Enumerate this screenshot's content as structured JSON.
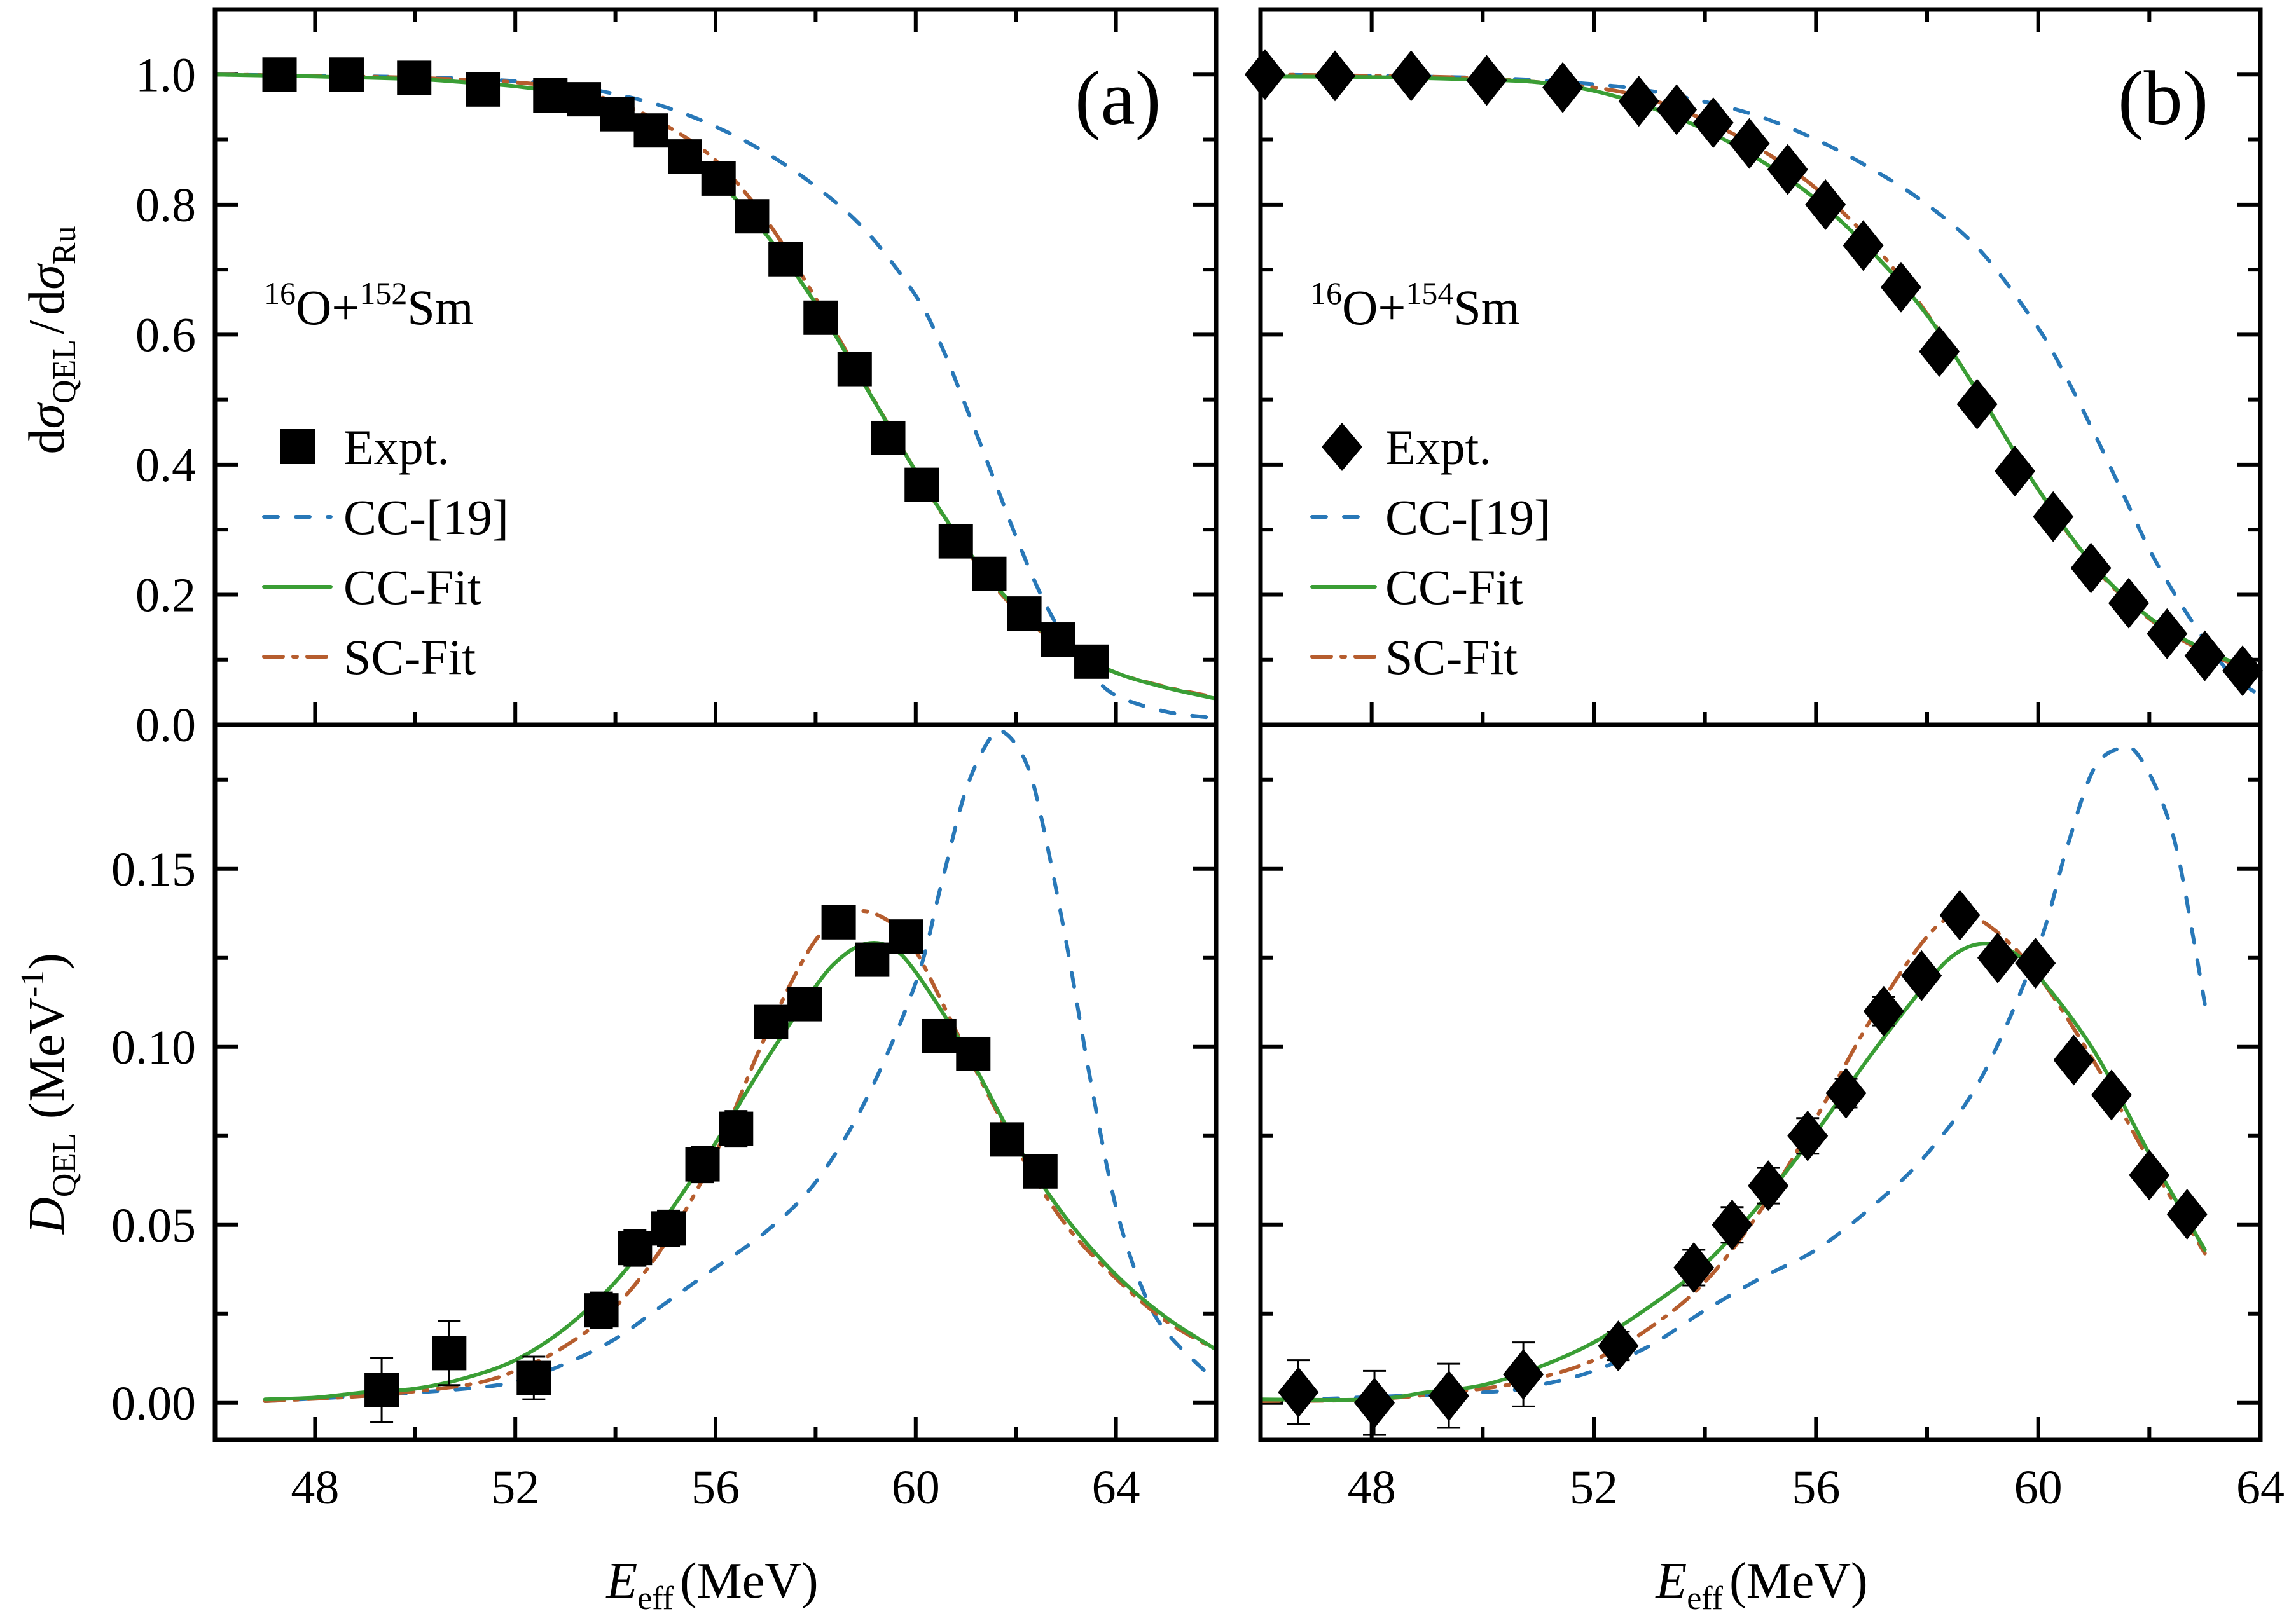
{
  "figure": {
    "panels": [
      {
        "id": "a",
        "label": "(a)",
        "system": {
          "mass_a": "16",
          "el_a": "O",
          "plus": "+",
          "mass_b": "152",
          "el_b": "Sm"
        },
        "marker": "square"
      },
      {
        "id": "b",
        "label": "(b)",
        "system": {
          "mass_a": "16",
          "el_a": "O",
          "plus": "+",
          "mass_b": "154",
          "el_b": "Sm"
        },
        "marker": "diamond"
      }
    ],
    "top_ylabel": {
      "d1": "d",
      "sigma1": "σ",
      "sub1": "QEL",
      "slash": "/",
      "d2": "d",
      "sigma2": "σ",
      "sub2": "Ru"
    },
    "bottom_ylabel": {
      "D": "D",
      "sub": "QEL",
      "unit_open": "(MeV",
      "unit_sup": "-1",
      "unit_close": ")"
    },
    "xlabel": {
      "E": "E",
      "sub": "eff",
      "unit": "(MeV)"
    },
    "legend": [
      {
        "key": "expt",
        "label": "Expt."
      },
      {
        "key": "cc19",
        "label": "CC-[19]"
      },
      {
        "key": "ccfit",
        "label": "CC-Fit"
      },
      {
        "key": "scfit",
        "label": "SC-Fit"
      }
    ],
    "colors": {
      "cc19": "#2878b8",
      "ccfit": "#3a9e35",
      "scfit": "#b65d2e",
      "expt": "#000000"
    }
  },
  "chart_data": [
    {
      "type": "scatter+line",
      "panel": "a-top",
      "title": "(a) 16O+152Sm",
      "xlabel": "E_eff (MeV)",
      "ylabel": "dσ_QEL/dσ_Ru",
      "xlim": [
        46,
        66
      ],
      "ylim": [
        0,
        1.1
      ],
      "xticks": [
        48,
        52,
        56,
        60,
        64
      ],
      "yticks": [
        0.0,
        0.2,
        0.4,
        0.6,
        0.8,
        1.0
      ],
      "ytick_labels": [
        "0.0",
        "0.2",
        "0.4",
        "0.6",
        "0.8",
        "1.0"
      ],
      "legend_position": "center-left",
      "series": [
        {
          "name": "Expt.",
          "kind": "points",
          "x": [
            47.29,
            48.63,
            49.98,
            51.35,
            52.7,
            53.37,
            54.04,
            54.71,
            55.39,
            56.06,
            56.73,
            57.4,
            58.1,
            58.78,
            59.45,
            60.12,
            60.8,
            61.47,
            62.17,
            62.84,
            63.51
          ],
          "y": [
            1.0,
            1.0,
            0.995,
            0.977,
            0.968,
            0.962,
            0.939,
            0.914,
            0.874,
            0.84,
            0.782,
            0.716,
            0.626,
            0.547,
            0.441,
            0.369,
            0.282,
            0.232,
            0.171,
            0.131,
            0.097
          ]
        },
        {
          "name": "CC-[19]",
          "kind": "line",
          "x": [
            46,
            50,
            52,
            53,
            54,
            55,
            56,
            57,
            58,
            59,
            60,
            60.5,
            61,
            61.5,
            62,
            62.5,
            63,
            63.5,
            64,
            65,
            66
          ],
          "y": [
            1.0,
            0.996,
            0.99,
            0.983,
            0.97,
            0.95,
            0.92,
            0.88,
            0.828,
            0.76,
            0.66,
            0.585,
            0.49,
            0.39,
            0.29,
            0.2,
            0.13,
            0.08,
            0.045,
            0.02,
            0.01
          ]
        },
        {
          "name": "CC-Fit",
          "kind": "line",
          "x": [
            46,
            48,
            50,
            51,
            52,
            53,
            54,
            55,
            56,
            57,
            58,
            59,
            60,
            61,
            62,
            63,
            64,
            65,
            66
          ],
          "y": [
            1.0,
            0.997,
            0.993,
            0.988,
            0.982,
            0.97,
            0.945,
            0.9,
            0.84,
            0.755,
            0.648,
            0.52,
            0.39,
            0.272,
            0.18,
            0.118,
            0.08,
            0.057,
            0.04
          ]
        },
        {
          "name": "SC-Fit",
          "kind": "line",
          "x": [
            46,
            48,
            50,
            52,
            53,
            54,
            55,
            56,
            57,
            58,
            59,
            60,
            61,
            62,
            63,
            64,
            65,
            66
          ],
          "y": [
            1.0,
            0.998,
            0.995,
            0.988,
            0.978,
            0.958,
            0.922,
            0.868,
            0.778,
            0.656,
            0.522,
            0.39,
            0.27,
            0.177,
            0.117,
            0.08,
            0.058,
            0.042
          ]
        }
      ]
    },
    {
      "type": "scatter+line",
      "panel": "a-bottom",
      "xlabel": "E_eff (MeV)",
      "ylabel": "D_QEL (MeV^-1)",
      "xlim": [
        46,
        66
      ],
      "ylim": [
        -0.0104,
        0.1905
      ],
      "xticks": [
        48,
        52,
        56,
        60,
        64
      ],
      "xtick_labels": [
        "48",
        "52",
        "56",
        "60",
        "64"
      ],
      "yticks": [
        0.0,
        0.05,
        0.1,
        0.15
      ],
      "ytick_labels": [
        "0.00",
        "0.05",
        "0.10",
        "0.15"
      ],
      "series": [
        {
          "name": "Expt.",
          "kind": "points",
          "x": [
            49.33,
            50.68,
            52.37,
            53.72,
            54.39,
            55.06,
            55.74,
            56.41,
            57.11,
            57.78,
            58.46,
            59.13,
            59.8,
            60.47,
            61.15,
            61.82,
            62.49
          ],
          "y": [
            0.0037,
            0.014,
            0.007,
            0.026,
            0.0435,
            0.049,
            0.067,
            0.077,
            0.107,
            0.112,
            0.135,
            0.1245,
            0.131,
            0.103,
            0.098,
            0.074,
            0.065
          ],
          "err": [
            0.009,
            0.009,
            0.006,
            0.005,
            0.005,
            0.005,
            0.005,
            0.005,
            0.004,
            0.004,
            0.003,
            0.002,
            0.002,
            0.002,
            0.002,
            0.002,
            0.002
          ]
        },
        {
          "name": "CC-[19]",
          "kind": "line",
          "x": [
            47,
            49,
            51,
            52,
            53,
            54,
            55,
            56,
            57,
            58,
            59,
            60,
            60.5,
            61,
            61.5,
            61.8,
            62.2,
            62.5,
            63,
            63.5,
            64,
            64.5,
            65,
            66
          ],
          "y": [
            0.0005,
            0.002,
            0.004,
            0.006,
            0.011,
            0.018,
            0.028,
            0.038,
            0.048,
            0.062,
            0.085,
            0.118,
            0.145,
            0.172,
            0.187,
            0.188,
            0.18,
            0.165,
            0.13,
            0.09,
            0.055,
            0.033,
            0.02,
            0.006
          ]
        },
        {
          "name": "CC-Fit",
          "kind": "line",
          "x": [
            47,
            48,
            49,
            50,
            51,
            52,
            53,
            54,
            55,
            56,
            57,
            58,
            58.5,
            59,
            59.5,
            60,
            61,
            62,
            63,
            64,
            65,
            66
          ],
          "y": [
            0.001,
            0.0015,
            0.003,
            0.004,
            0.007,
            0.012,
            0.021,
            0.034,
            0.052,
            0.073,
            0.096,
            0.117,
            0.125,
            0.129,
            0.128,
            0.121,
            0.099,
            0.073,
            0.052,
            0.036,
            0.024,
            0.015
          ]
        },
        {
          "name": "SC-Fit",
          "kind": "line",
          "x": [
            47,
            49,
            51,
            52,
            53,
            54,
            55,
            56,
            57,
            58,
            58.8,
            59.5,
            60,
            61,
            62,
            63,
            64,
            65,
            66
          ],
          "y": [
            0.0005,
            0.002,
            0.005,
            0.009,
            0.016,
            0.027,
            0.045,
            0.07,
            0.103,
            0.13,
            0.138,
            0.135,
            0.127,
            0.099,
            0.072,
            0.05,
            0.035,
            0.023,
            0.015
          ]
        }
      ]
    },
    {
      "type": "scatter+line",
      "panel": "b-top",
      "title": "(b) 16O+154Sm",
      "xlim": [
        46,
        64
      ],
      "ylim": [
        0,
        1.1
      ],
      "xticks": [
        48,
        52,
        56,
        60,
        64
      ],
      "yticks": [
        0.0,
        0.2,
        0.4,
        0.6,
        0.8,
        1.0
      ],
      "legend_position": "center-left",
      "series": [
        {
          "name": "Expt.",
          "kind": "points",
          "x": [
            46.08,
            47.34,
            48.71,
            50.07,
            51.44,
            52.81,
            53.49,
            54.15,
            54.8,
            55.49,
            56.17,
            56.85,
            57.53,
            58.22,
            58.9,
            59.58,
            60.27,
            60.95,
            61.63,
            62.32,
            63.0,
            63.68
          ],
          "y": [
            1.0,
            0.998,
            0.998,
            0.991,
            0.98,
            0.959,
            0.946,
            0.926,
            0.894,
            0.854,
            0.8,
            0.737,
            0.673,
            0.574,
            0.493,
            0.39,
            0.32,
            0.241,
            0.187,
            0.14,
            0.106,
            0.083
          ]
        },
        {
          "name": "CC-[19]",
          "kind": "line",
          "x": [
            46,
            50,
            52,
            53,
            54,
            55,
            56,
            57,
            58,
            59,
            60,
            60.5,
            61,
            61.5,
            62,
            62.5,
            63,
            63.5,
            64
          ],
          "y": [
            1.0,
            0.995,
            0.985,
            0.975,
            0.958,
            0.935,
            0.9,
            0.855,
            0.8,
            0.725,
            0.61,
            0.535,
            0.45,
            0.36,
            0.27,
            0.195,
            0.13,
            0.075,
            0.045
          ]
        },
        {
          "name": "CC-Fit",
          "kind": "line",
          "x": [
            46,
            48,
            50,
            51,
            52,
            53,
            54,
            55,
            56,
            57,
            58,
            59,
            60,
            61,
            62,
            63,
            64
          ],
          "y": [
            0.997,
            0.996,
            0.992,
            0.988,
            0.975,
            0.95,
            0.915,
            0.868,
            0.808,
            0.728,
            0.63,
            0.5,
            0.362,
            0.245,
            0.165,
            0.115,
            0.08
          ]
        },
        {
          "name": "SC-Fit",
          "kind": "line",
          "x": [
            46,
            48,
            50,
            52,
            53,
            54,
            55,
            56,
            57,
            58,
            59,
            60,
            61,
            62,
            63,
            64
          ],
          "y": [
            1.0,
            0.998,
            0.994,
            0.98,
            0.962,
            0.93,
            0.885,
            0.825,
            0.742,
            0.632,
            0.5,
            0.362,
            0.243,
            0.163,
            0.112,
            0.078
          ]
        }
      ]
    },
    {
      "type": "scatter+line",
      "panel": "b-bottom",
      "xlabel": "E_eff (MeV)",
      "xlim": [
        46,
        64
      ],
      "ylim": [
        -0.0104,
        0.1905
      ],
      "xticks": [
        48,
        52,
        56,
        60,
        64
      ],
      "xtick_labels": [
        "48",
        "52",
        "56",
        "60",
        "64"
      ],
      "yticks": [
        0.0,
        0.05,
        0.1,
        0.15
      ],
      "series": [
        {
          "name": "Expt.",
          "kind": "points",
          "x": [
            46.68,
            48.05,
            49.39,
            50.73,
            52.44,
            53.8,
            54.49,
            55.14,
            55.85,
            56.54,
            57.22,
            57.9,
            58.59,
            59.27,
            59.95,
            60.64,
            61.32,
            62.0,
            62.68
          ],
          "y": [
            0.003,
            0.0,
            0.002,
            0.008,
            0.016,
            0.038,
            0.05,
            0.061,
            0.075,
            0.087,
            0.11,
            0.12,
            0.137,
            0.125,
            0.1235,
            0.0963,
            0.0865,
            0.064,
            0.053
          ],
          "err": [
            0.009,
            0.009,
            0.009,
            0.009,
            0.004,
            0.005,
            0.005,
            0.005,
            0.005,
            0.004,
            0.004,
            0.003,
            0.003,
            0.002,
            0.002,
            0.002,
            0.002,
            0.002,
            0.002
          ]
        },
        {
          "name": "CC-[19]",
          "kind": "line",
          "x": [
            46,
            50,
            51,
            52,
            53,
            54,
            55,
            56,
            57,
            58,
            59,
            60,
            60.5,
            61,
            61.5,
            61.8,
            62.2,
            62.5,
            62.8,
            63
          ],
          "y": [
            0.0005,
            0.003,
            0.005,
            0.009,
            0.016,
            0.026,
            0.035,
            0.043,
            0.055,
            0.07,
            0.092,
            0.128,
            0.155,
            0.178,
            0.184,
            0.182,
            0.17,
            0.155,
            0.13,
            0.112
          ]
        },
        {
          "name": "CC-Fit",
          "kind": "line",
          "x": [
            46,
            48,
            49,
            50,
            51,
            52,
            53,
            54,
            55,
            56,
            57,
            58,
            58.5,
            59,
            59.5,
            60,
            61,
            62,
            63
          ],
          "y": [
            0.001,
            0.001,
            0.003,
            0.005,
            0.01,
            0.017,
            0.027,
            0.039,
            0.056,
            0.076,
            0.098,
            0.118,
            0.126,
            0.129,
            0.127,
            0.12,
            0.099,
            0.07,
            0.043
          ]
        },
        {
          "name": "SC-Fit",
          "kind": "line",
          "x": [
            46,
            48,
            50,
            51,
            52,
            53,
            54,
            55,
            56,
            57,
            58,
            58.6,
            59.2,
            60,
            61,
            62,
            63
          ],
          "y": [
            0.0005,
            0.001,
            0.004,
            0.007,
            0.012,
            0.021,
            0.034,
            0.054,
            0.08,
            0.108,
            0.131,
            0.137,
            0.133,
            0.12,
            0.096,
            0.068,
            0.042
          ]
        }
      ]
    }
  ]
}
